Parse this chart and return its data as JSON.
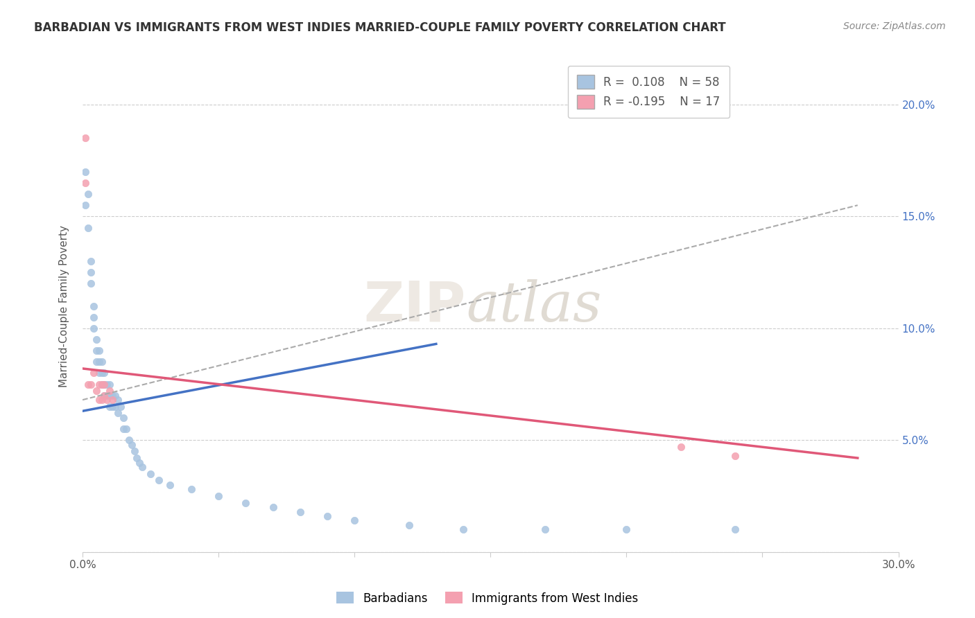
{
  "title": "BARBADIAN VS IMMIGRANTS FROM WEST INDIES MARRIED-COUPLE FAMILY POVERTY CORRELATION CHART",
  "source": "Source: ZipAtlas.com",
  "ylabel": "Married-Couple Family Poverty",
  "xlim": [
    0.0,
    0.3
  ],
  "ylim": [
    0.0,
    0.22
  ],
  "legend_blue_r": "0.108",
  "legend_blue_n": "58",
  "legend_pink_r": "-0.195",
  "legend_pink_n": "17",
  "barbadian_color": "#a8c4e0",
  "westindies_color": "#f4a0b0",
  "barbadian_line_color": "#4472c4",
  "westindies_line_color": "#e05878",
  "gray_line_color": "#aaaaaa",
  "barbadian_scatter_x": [
    0.001,
    0.001,
    0.002,
    0.002,
    0.003,
    0.003,
    0.003,
    0.004,
    0.004,
    0.004,
    0.005,
    0.005,
    0.005,
    0.006,
    0.006,
    0.006,
    0.007,
    0.007,
    0.007,
    0.008,
    0.008,
    0.008,
    0.009,
    0.009,
    0.01,
    0.01,
    0.01,
    0.011,
    0.011,
    0.012,
    0.012,
    0.013,
    0.013,
    0.014,
    0.015,
    0.015,
    0.016,
    0.017,
    0.018,
    0.019,
    0.02,
    0.021,
    0.022,
    0.025,
    0.028,
    0.032,
    0.04,
    0.05,
    0.06,
    0.07,
    0.08,
    0.09,
    0.1,
    0.12,
    0.14,
    0.17,
    0.2,
    0.24
  ],
  "barbadian_scatter_y": [
    0.17,
    0.155,
    0.16,
    0.145,
    0.13,
    0.125,
    0.12,
    0.11,
    0.105,
    0.1,
    0.095,
    0.09,
    0.085,
    0.09,
    0.085,
    0.08,
    0.085,
    0.08,
    0.075,
    0.08,
    0.075,
    0.07,
    0.075,
    0.07,
    0.075,
    0.07,
    0.065,
    0.07,
    0.065,
    0.07,
    0.065,
    0.068,
    0.062,
    0.065,
    0.06,
    0.055,
    0.055,
    0.05,
    0.048,
    0.045,
    0.042,
    0.04,
    0.038,
    0.035,
    0.032,
    0.03,
    0.028,
    0.025,
    0.022,
    0.02,
    0.018,
    0.016,
    0.014,
    0.012,
    0.01,
    0.01,
    0.01,
    0.01
  ],
  "westindies_scatter_x": [
    0.001,
    0.001,
    0.002,
    0.003,
    0.004,
    0.005,
    0.006,
    0.006,
    0.007,
    0.007,
    0.008,
    0.008,
    0.009,
    0.01,
    0.011,
    0.22,
    0.24
  ],
  "westindies_scatter_y": [
    0.185,
    0.165,
    0.075,
    0.075,
    0.08,
    0.072,
    0.075,
    0.068,
    0.075,
    0.068,
    0.075,
    0.07,
    0.068,
    0.072,
    0.068,
    0.047,
    0.043
  ],
  "blue_line_x": [
    0.0,
    0.13
  ],
  "blue_line_y": [
    0.063,
    0.093
  ],
  "gray_dashed_line_x": [
    0.0,
    0.285
  ],
  "gray_dashed_line_y": [
    0.068,
    0.155
  ],
  "pink_line_x": [
    0.0,
    0.285
  ],
  "pink_line_y": [
    0.082,
    0.042
  ]
}
